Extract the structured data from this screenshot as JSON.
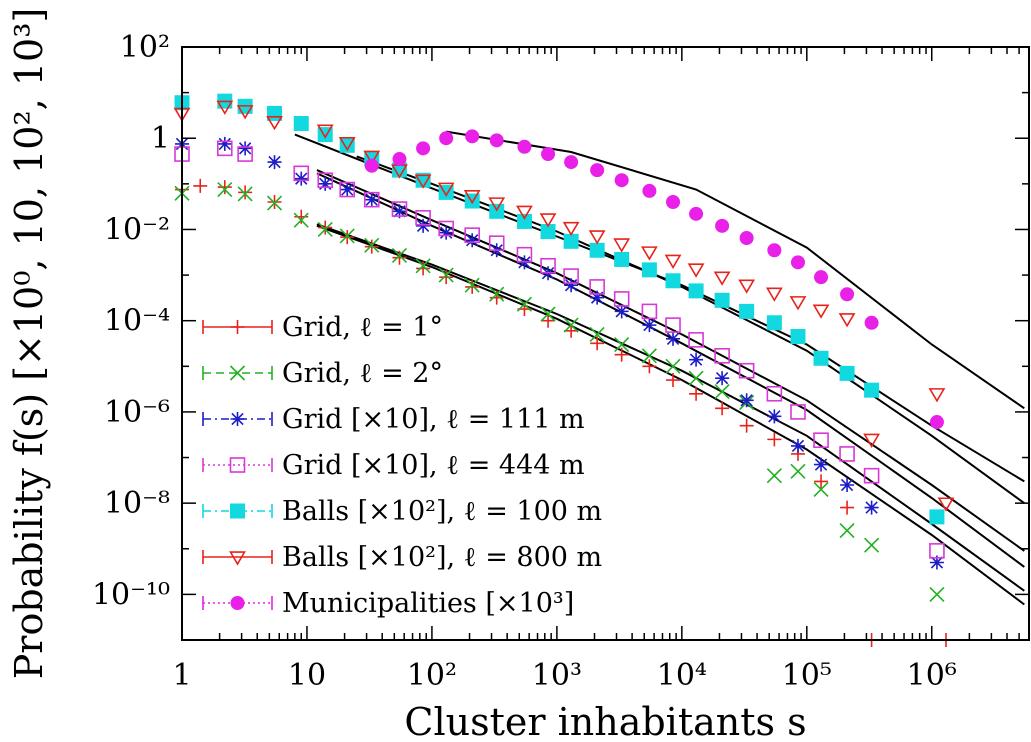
{
  "chart_data": {
    "type": "scatter",
    "xlabel": "Cluster inhabitants s",
    "ylabel": "Probability f(s) [×10⁰, 10, 10², 10³]",
    "x_scale": "log",
    "y_scale": "log",
    "xlim": [
      1,
      6000000
    ],
    "ylim": [
      1e-11,
      100
    ],
    "x_tick_labels": [
      "1",
      "10",
      "10²",
      "10³",
      "10⁴",
      "10⁵",
      "10⁶"
    ],
    "y_tick_labels": [
      "10²",
      "1",
      "10⁻²",
      "10⁻⁴",
      "10⁻⁶",
      "10⁻⁸",
      "10⁻¹⁰"
    ],
    "legend_position": "bottom-left",
    "grid": false,
    "series": [
      {
        "name": "Grid, ℓ = 1°",
        "color": "#e8231a",
        "marker": "plus",
        "line": "solid",
        "points": [
          [
            1,
            0.075
          ],
          [
            1.4,
            0.09
          ],
          [
            2.2,
            0.085
          ],
          [
            3.2,
            0.065
          ],
          [
            5.5,
            0.04
          ],
          [
            9,
            0.019
          ],
          [
            14,
            0.011
          ],
          [
            21,
            0.0068
          ],
          [
            33,
            0.0042
          ],
          [
            55,
            0.0024
          ],
          [
            85,
            0.0014
          ],
          [
            130,
            0.0009
          ],
          [
            210,
            0.00055
          ],
          [
            330,
            0.00032
          ],
          [
            550,
            0.00018
          ],
          [
            850,
            0.0001
          ],
          [
            1300,
            6e-05
          ],
          [
            2100,
            3.2e-05
          ],
          [
            3300,
            1.8e-05
          ],
          [
            5500,
            1e-05
          ],
          [
            8500,
            5e-06
          ],
          [
            13000,
            2.5e-06
          ],
          [
            21000,
            1.2e-06
          ],
          [
            33000,
            5e-07
          ],
          [
            55000,
            2.5e-07
          ],
          [
            85000,
            1.2e-07
          ],
          [
            130000,
            3e-08
          ],
          [
            210000,
            8e-09
          ],
          [
            330000,
            1e-11
          ],
          [
            1300000,
            1e-11
          ]
        ]
      },
      {
        "name": "Grid, ℓ = 2°",
        "color": "#22b022",
        "marker": "cross",
        "line": "dashed",
        "points": [
          [
            1,
            0.062
          ],
          [
            2.2,
            0.075
          ],
          [
            3.2,
            0.06
          ],
          [
            5.5,
            0.038
          ],
          [
            9,
            0.016
          ],
          [
            14,
            0.01
          ],
          [
            21,
            0.0072
          ],
          [
            33,
            0.0045
          ],
          [
            55,
            0.0027
          ],
          [
            85,
            0.0016
          ],
          [
            130,
            0.001
          ],
          [
            210,
            0.0006
          ],
          [
            330,
            0.00038
          ],
          [
            550,
            0.00023
          ],
          [
            850,
            0.00014
          ],
          [
            1300,
            8e-05
          ],
          [
            2100,
            5e-05
          ],
          [
            3300,
            3e-05
          ],
          [
            5500,
            1.7e-05
          ],
          [
            8500,
            1e-05
          ],
          [
            13000,
            5.5e-06
          ],
          [
            21000,
            2.8e-06
          ],
          [
            33000,
            1.6e-06
          ],
          [
            55000,
            4e-08
          ],
          [
            85000,
            5e-08
          ],
          [
            130000,
            2e-08
          ],
          [
            210000,
            2.5e-09
          ],
          [
            330000,
            1.2e-09
          ],
          [
            1100000,
            1e-10
          ]
        ]
      },
      {
        "name": "Grid [×10], ℓ = 111 m",
        "color": "#1c1cc8",
        "marker": "star",
        "line": "dash-dot",
        "points": [
          [
            1,
            0.75
          ],
          [
            2.2,
            0.75
          ],
          [
            3.2,
            0.6
          ],
          [
            5.5,
            0.3
          ],
          [
            9,
            0.13
          ],
          [
            14,
            0.1
          ],
          [
            21,
            0.075
          ],
          [
            33,
            0.045
          ],
          [
            55,
            0.025
          ],
          [
            85,
            0.012
          ],
          [
            130,
            0.0085
          ],
          [
            210,
            0.0058
          ],
          [
            330,
            0.0035
          ],
          [
            550,
            0.0019
          ],
          [
            850,
            0.0011
          ],
          [
            1300,
            0.0006
          ],
          [
            2100,
            0.00032
          ],
          [
            3300,
            0.00016
          ],
          [
            5500,
            8e-05
          ],
          [
            8500,
            4e-05
          ],
          [
            13000,
            1.4e-05
          ],
          [
            21000,
            5.5e-06
          ],
          [
            33000,
            1.8e-06
          ],
          [
            55000,
            8e-07
          ],
          [
            85000,
            1.8e-07
          ],
          [
            130000,
            7e-08
          ],
          [
            210000,
            2.5e-08
          ],
          [
            330000,
            8e-09
          ],
          [
            1100000,
            5e-10
          ]
        ]
      },
      {
        "name": "Grid [×10], ℓ = 444 m",
        "color": "#d838d8",
        "marker": "square-open",
        "line": "dotted",
        "points": [
          [
            1,
            0.45
          ],
          [
            2.2,
            0.6
          ],
          [
            3.2,
            0.45
          ],
          [
            9,
            0.17
          ],
          [
            14,
            0.12
          ],
          [
            21,
            0.075
          ],
          [
            33,
            0.045
          ],
          [
            55,
            0.028
          ],
          [
            85,
            0.018
          ],
          [
            130,
            0.0105
          ],
          [
            210,
            0.0075
          ],
          [
            330,
            0.005
          ],
          [
            550,
            0.0028
          ],
          [
            850,
            0.0016
          ],
          [
            1300,
            0.00095
          ],
          [
            2100,
            0.00055
          ],
          [
            3300,
            0.0003
          ],
          [
            5500,
            0.00016
          ],
          [
            8500,
            8e-05
          ],
          [
            13000,
            3.8e-05
          ],
          [
            21000,
            1.7e-05
          ],
          [
            33000,
            8e-06
          ],
          [
            55000,
            2.5e-06
          ],
          [
            85000,
            1e-06
          ],
          [
            130000,
            2.4e-07
          ],
          [
            210000,
            1.2e-07
          ],
          [
            330000,
            4e-08
          ],
          [
            1100000,
            9e-10
          ]
        ]
      },
      {
        "name": "Balls [×10²], ℓ = 100 m",
        "color": "#12d8e0",
        "marker": "square-filled",
        "line": "dash-dot",
        "points": [
          [
            1,
            6
          ],
          [
            2.2,
            6.5
          ],
          [
            3.2,
            5
          ],
          [
            5.5,
            3.5
          ],
          [
            9,
            2.1
          ],
          [
            14,
            1.2
          ],
          [
            21,
            0.7
          ],
          [
            33,
            0.35
          ],
          [
            55,
            0.2
          ],
          [
            85,
            0.12
          ],
          [
            130,
            0.065
          ],
          [
            210,
            0.042
          ],
          [
            330,
            0.025
          ],
          [
            550,
            0.015
          ],
          [
            850,
            0.009
          ],
          [
            1300,
            0.0055
          ],
          [
            2100,
            0.0035
          ],
          [
            3300,
            0.0022
          ],
          [
            5500,
            0.0013
          ],
          [
            8500,
            0.00075
          ],
          [
            13000,
            0.00045
          ],
          [
            21000,
            0.00028
          ],
          [
            33000,
            0.00016
          ],
          [
            55000,
            9e-05
          ],
          [
            85000,
            4.5e-05
          ],
          [
            130000,
            1.5e-05
          ],
          [
            210000,
            7e-06
          ],
          [
            330000,
            3e-06
          ],
          [
            1100000,
            5e-09
          ]
        ]
      },
      {
        "name": "Balls [×10²], ℓ = 800 m",
        "color": "#e8231a",
        "marker": "triangle-down-open",
        "line": "solid",
        "points": [
          [
            1,
            3.5
          ],
          [
            2.2,
            5
          ],
          [
            3.2,
            4
          ],
          [
            5.5,
            2.3
          ],
          [
            14,
            1.5
          ],
          [
            21,
            0.8
          ],
          [
            33,
            0.4
          ],
          [
            55,
            0.2
          ],
          [
            85,
            0.12
          ],
          [
            130,
            0.08
          ],
          [
            210,
            0.055
          ],
          [
            330,
            0.038
          ],
          [
            550,
            0.025
          ],
          [
            850,
            0.017
          ],
          [
            1300,
            0.011
          ],
          [
            2100,
            0.0072
          ],
          [
            3300,
            0.0048
          ],
          [
            5500,
            0.0032
          ],
          [
            8500,
            0.0021
          ],
          [
            13000,
            0.00135
          ],
          [
            21000,
            0.0009
          ],
          [
            33000,
            0.0006
          ],
          [
            55000,
            0.0004
          ],
          [
            85000,
            0.00026
          ],
          [
            130000,
            0.00017
          ],
          [
            210000,
            0.00011
          ],
          [
            330000,
            2.5e-07
          ],
          [
            1100000,
            2.5e-06
          ],
          [
            1300000,
            1e-08
          ]
        ]
      },
      {
        "name": "Municipalities [×10³]",
        "color": "#e820e8",
        "marker": "circle-filled",
        "line": "dotted",
        "points": [
          [
            33,
            0.25
          ],
          [
            55,
            0.35
          ],
          [
            85,
            0.6
          ],
          [
            130,
            1.0
          ],
          [
            210,
            1.1
          ],
          [
            330,
            0.9
          ],
          [
            550,
            0.65
          ],
          [
            850,
            0.45
          ],
          [
            1300,
            0.3
          ],
          [
            2100,
            0.2
          ],
          [
            3300,
            0.12
          ],
          [
            5500,
            0.07
          ],
          [
            8500,
            0.04
          ],
          [
            13000,
            0.022
          ],
          [
            21000,
            0.012
          ],
          [
            33000,
            0.0065
          ],
          [
            55000,
            0.0035
          ],
          [
            85000,
            0.0019
          ],
          [
            130000,
            0.0009
          ],
          [
            210000,
            0.00038
          ],
          [
            330000,
            9e-05
          ],
          [
            1100000,
            6e-07
          ]
        ]
      }
    ],
    "fit_curves": [
      {
        "x": [
          130,
          5500000
        ],
        "anchors": [
          [
            130,
            1.4
          ],
          [
            1300,
            0.5
          ],
          [
            13000,
            0.075
          ],
          [
            100000,
            0.004
          ],
          [
            1000000,
            3e-05
          ],
          [
            5500000,
            1.2e-06
          ]
        ]
      },
      {
        "x": [
          8,
          5500000
        ],
        "anchors": [
          [
            8,
            1.2
          ],
          [
            100,
            0.08
          ],
          [
            1000,
            0.007
          ],
          [
            10000,
            0.0006
          ],
          [
            100000,
            3e-05
          ],
          [
            1000000,
            5e-07
          ],
          [
            5500000,
            3e-08
          ]
        ]
      },
      {
        "x": [
          25,
          5500000
        ],
        "anchors": [
          [
            25,
            0.4
          ],
          [
            100,
            0.1
          ],
          [
            1000,
            0.009
          ],
          [
            10000,
            0.00055
          ],
          [
            100000,
            2.2e-05
          ],
          [
            1000000,
            3e-07
          ],
          [
            5500000,
            1e-08
          ]
        ]
      },
      {
        "x": [
          12,
          5500000
        ],
        "anchors": [
          [
            12,
            0.2
          ],
          [
            100,
            0.016
          ],
          [
            1000,
            0.0011
          ],
          [
            10000,
            5e-05
          ],
          [
            100000,
            1.8e-06
          ],
          [
            1000000,
            2.5e-08
          ],
          [
            5500000,
            9e-10
          ]
        ]
      },
      {
        "x": [
          12,
          5500000
        ],
        "anchors": [
          [
            12,
            0.17
          ],
          [
            100,
            0.012
          ],
          [
            1000,
            0.0008
          ],
          [
            10000,
            3.2e-05
          ],
          [
            100000,
            1.1e-06
          ],
          [
            1000000,
            1.3e-08
          ],
          [
            5500000,
            4e-10
          ]
        ]
      },
      {
        "x": [
          12,
          5500000
        ],
        "anchors": [
          [
            12,
            0.013
          ],
          [
            100,
            0.0017
          ],
          [
            1000,
            0.00014
          ],
          [
            10000,
            8e-06
          ],
          [
            100000,
            3e-07
          ],
          [
            1000000,
            3.5e-09
          ],
          [
            5500000,
            1.2e-10
          ]
        ]
      },
      {
        "x": [
          12,
          5500000
        ],
        "anchors": [
          [
            12,
            0.012
          ],
          [
            100,
            0.0015
          ],
          [
            1000,
            0.00011
          ],
          [
            10000,
            5e-06
          ],
          [
            100000,
            1.5e-07
          ],
          [
            1000000,
            2e-09
          ],
          [
            5500000,
            6e-11
          ]
        ]
      }
    ]
  }
}
